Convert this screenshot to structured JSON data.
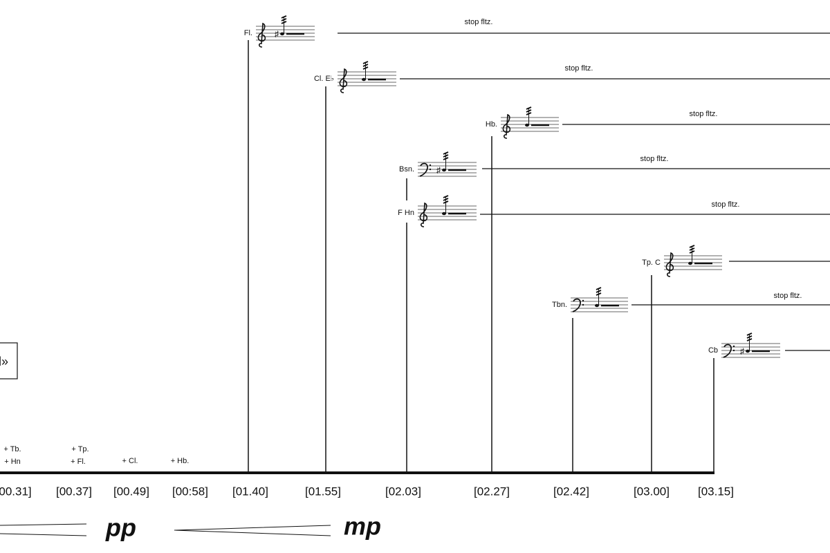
{
  "box": "l»",
  "timeline": {
    "times": [
      "00.31]",
      "[00.37]",
      "[00.49]",
      "[00:58]",
      "[01.40]",
      "[01.55]",
      "[02.03]",
      "[02.27]",
      "[02.42]",
      "[03.00]",
      "[03.15]"
    ],
    "entries": [
      "+ Tb.",
      "+ Hn",
      "+ Tp.",
      "+ Fl.",
      "+ Cl.",
      "+ Hb."
    ]
  },
  "instruments": [
    {
      "label": "Fl.",
      "note": "stop fltz."
    },
    {
      "label": "Cl. E♭",
      "note": "stop fltz."
    },
    {
      "label": "Hb.",
      "note": "stop fltz."
    },
    {
      "label": "Bsn.",
      "note": "stop fltz."
    },
    {
      "label": "F Hn",
      "note": "stop fltz."
    },
    {
      "label": "Tp. C"
    },
    {
      "label": "Tbn.",
      "note": "stop fltz."
    },
    {
      "label": "Cb"
    }
  ],
  "dynamics": [
    "pp",
    "mp"
  ]
}
